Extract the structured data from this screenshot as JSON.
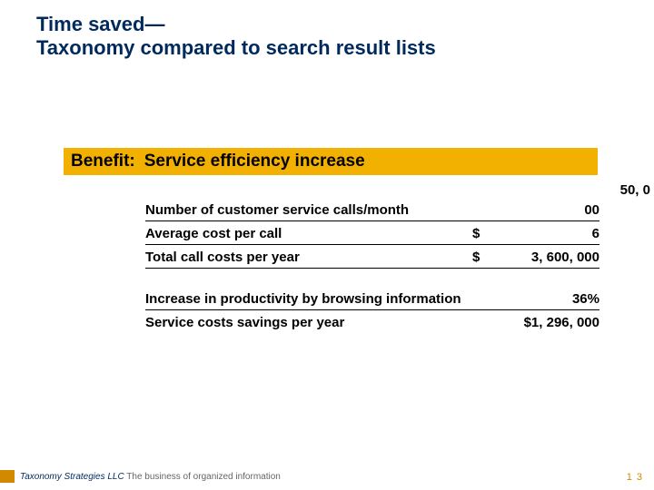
{
  "title_line1": "Time saved—",
  "title_line2": "Taxonomy compared to search result lists",
  "benefit_label": "Benefit:",
  "benefit_text": "Service efficiency increase",
  "overflow_number": "50, 0",
  "rows": [
    {
      "label": "Number of customer service calls/month",
      "dollar": "",
      "num": "00"
    },
    {
      "label": "Average cost per call",
      "dollar": "$",
      "num": "6"
    },
    {
      "label": "Total call costs per year",
      "dollar": "$",
      "num": "3, 600, 000"
    }
  ],
  "rows2": [
    {
      "label": "Increase in productivity by browsing information",
      "val": "36%"
    },
    {
      "label": "Service costs savings per year",
      "val": "$1, 296, 000"
    }
  ],
  "footer_company": "Taxonomy Strategies LLC",
  "footer_tagline": "  The business of organized information",
  "page_number": "1 3",
  "colors": {
    "title": "#002a5c",
    "benefit_bg": "#f2b000",
    "footer_block": "#d18a00",
    "page_num": "#d18a00"
  }
}
